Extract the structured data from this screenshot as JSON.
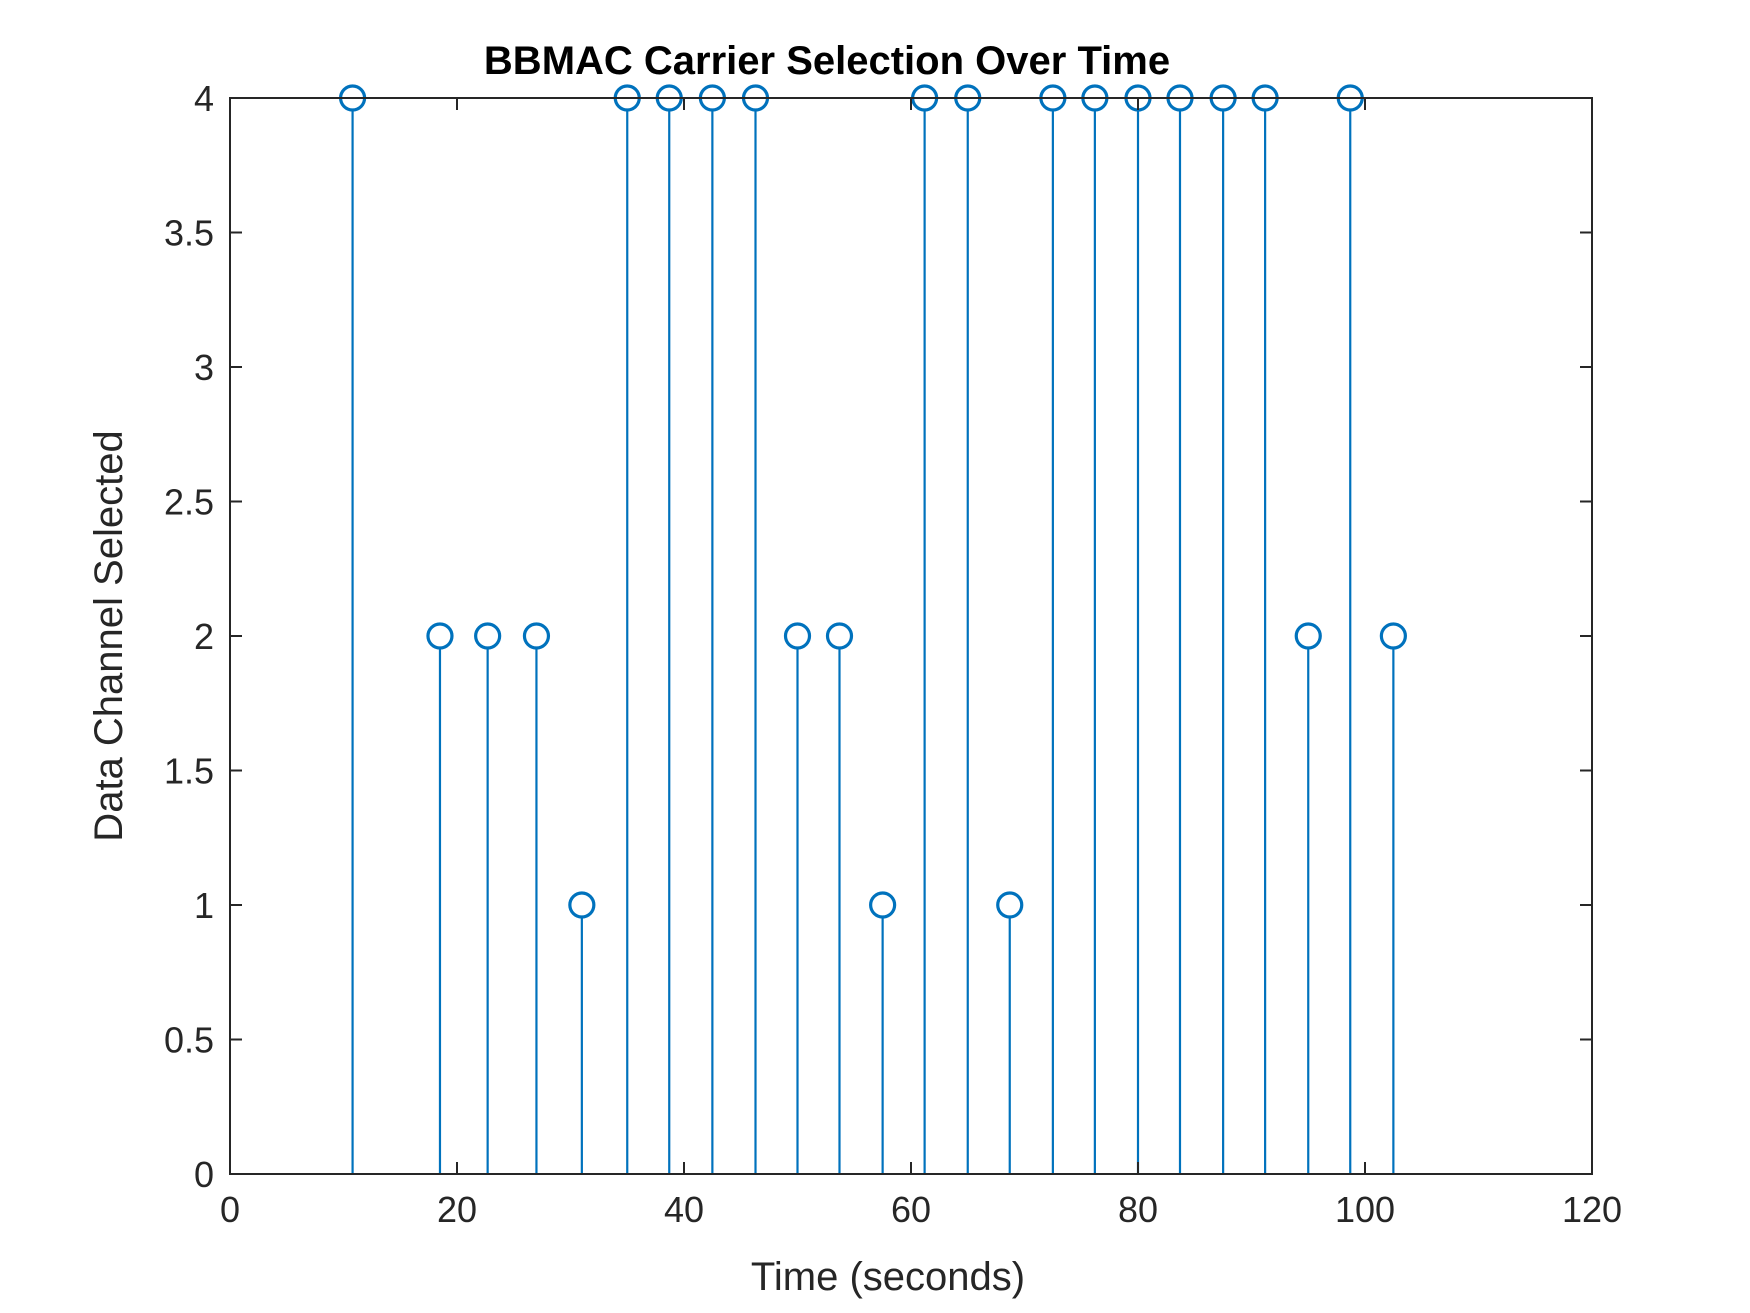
{
  "chart_data": {
    "type": "stem",
    "title": "BBMAC Carrier Selection Over Time",
    "xlabel": "Time (seconds)",
    "ylabel": "Data Channel Selected",
    "xlim": [
      0,
      120
    ],
    "ylim": [
      0,
      4
    ],
    "xticks": [
      "0",
      "20",
      "40",
      "60",
      "80",
      "100",
      "120"
    ],
    "yticks": [
      "0",
      "0.5",
      "1",
      "1.5",
      "2",
      "2.5",
      "3",
      "3.5",
      "4"
    ],
    "grid": false,
    "marker": "circle",
    "color": "#0072BD",
    "x": [
      10.8,
      18.5,
      22.7,
      27.0,
      31.0,
      35.0,
      38.7,
      42.5,
      46.3,
      50.0,
      53.7,
      57.5,
      61.2,
      65.0,
      68.7,
      72.5,
      76.2,
      80.0,
      83.7,
      87.5,
      91.2,
      95.0,
      98.7,
      102.5
    ],
    "y": [
      4,
      2,
      2,
      2,
      1,
      4,
      4,
      4,
      4,
      2,
      2,
      1,
      4,
      4,
      1,
      4,
      4,
      4,
      4,
      4,
      4,
      2,
      4,
      2
    ]
  }
}
